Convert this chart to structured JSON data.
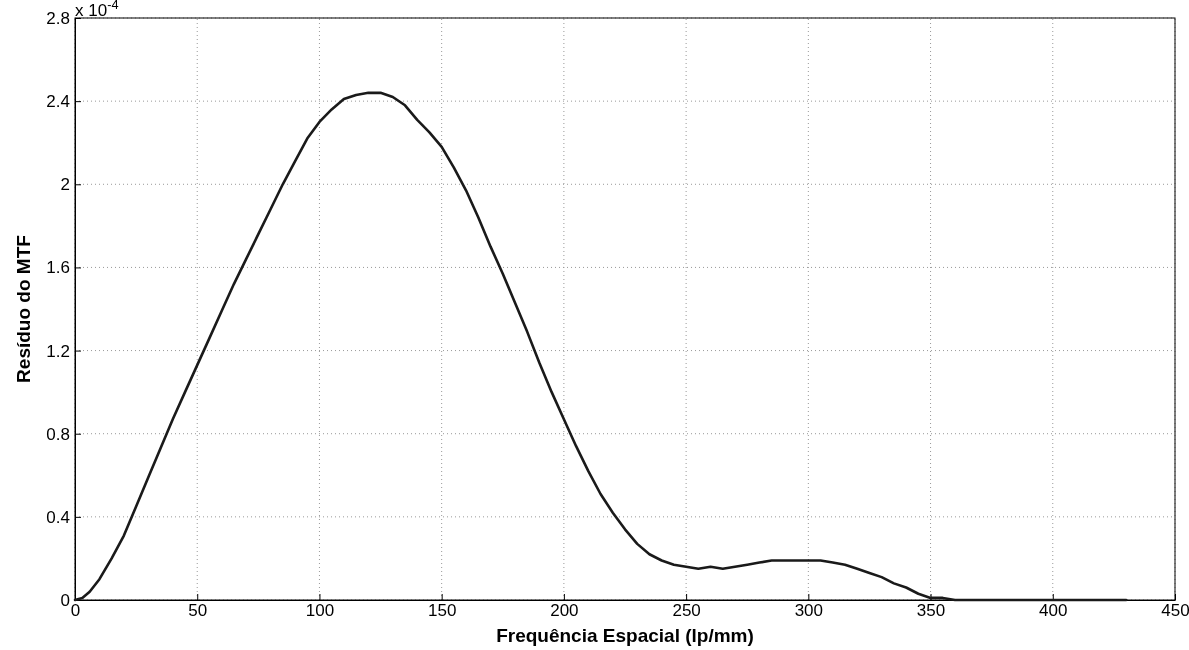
{
  "chart_data": {
    "type": "line",
    "xlabel": "Frequência Espacial (lp/mm)",
    "ylabel": "Resíduo do MTF",
    "annotations": [
      "x 10$^{-4}$"
    ],
    "xlim": [
      0,
      450
    ],
    "xticks": [
      0,
      50,
      100,
      150,
      200,
      250,
      300,
      350,
      400,
      450
    ],
    "ylim": [
      0,
      2.8
    ],
    "yticks": [
      0,
      0.4,
      0.8,
      1.2,
      1.6,
      2,
      2.4,
      2.8
    ],
    "grid": true,
    "line_style": "solid",
    "marker": "none",
    "series": [
      {
        "color": "#1a1a1a",
        "x": [
          0,
          3,
          6,
          10,
          15,
          20,
          25,
          30,
          35,
          40,
          45,
          50,
          55,
          60,
          65,
          70,
          75,
          80,
          85,
          90,
          95,
          100,
          105,
          110,
          115,
          120,
          125,
          130,
          135,
          140,
          145,
          150,
          155,
          160,
          165,
          170,
          175,
          180,
          185,
          190,
          195,
          200,
          205,
          210,
          215,
          220,
          225,
          230,
          235,
          240,
          245,
          250,
          255,
          260,
          265,
          270,
          275,
          280,
          285,
          290,
          295,
          300,
          305,
          310,
          315,
          320,
          325,
          330,
          335,
          340,
          345,
          350,
          355,
          360,
          380,
          400,
          430
        ],
        "values": [
          0,
          0.01,
          0.04,
          0.1,
          0.2,
          0.31,
          0.45,
          0.59,
          0.73,
          0.87,
          1.0,
          1.13,
          1.26,
          1.39,
          1.52,
          1.64,
          1.76,
          1.88,
          2.0,
          2.11,
          2.22,
          2.3,
          2.36,
          2.41,
          2.43,
          2.44,
          2.44,
          2.42,
          2.38,
          2.31,
          2.25,
          2.18,
          2.08,
          1.97,
          1.84,
          1.7,
          1.57,
          1.43,
          1.29,
          1.14,
          1.0,
          0.87,
          0.74,
          0.62,
          0.51,
          0.42,
          0.34,
          0.27,
          0.22,
          0.19,
          0.17,
          0.16,
          0.15,
          0.16,
          0.15,
          0.16,
          0.17,
          0.18,
          0.19,
          0.19,
          0.19,
          0.19,
          0.19,
          0.18,
          0.17,
          0.15,
          0.13,
          0.11,
          0.08,
          0.06,
          0.03,
          0.01,
          0.01,
          0,
          0,
          0,
          0
        ]
      }
    ]
  }
}
